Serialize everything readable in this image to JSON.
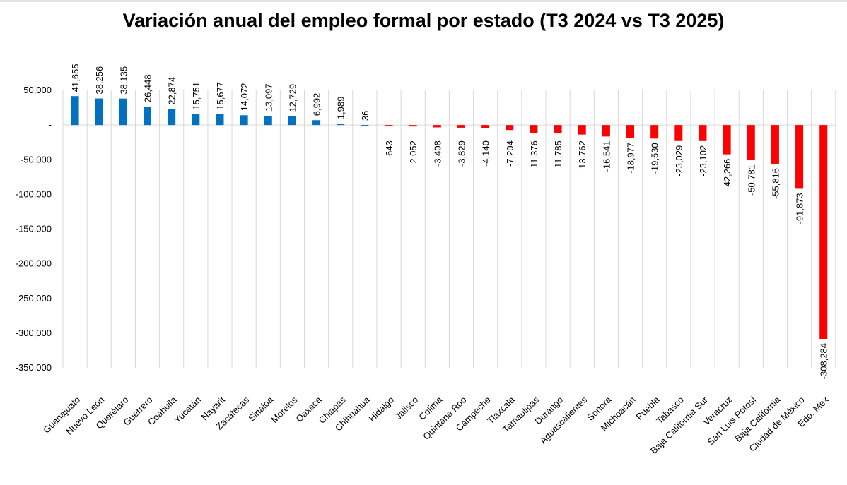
{
  "chart_data": {
    "type": "bar",
    "title": "Variación anual del empleo formal por estado (T3 2024 vs T3 2025)",
    "xlabel": "",
    "ylabel": "",
    "ylim": [
      -350000,
      50000
    ],
    "yticks": [
      50000,
      0,
      -50000,
      -100000,
      -150000,
      -200000,
      -250000,
      -300000,
      -350000
    ],
    "ytick_labels": [
      "50,000",
      "-",
      "-50,000",
      "-100,000",
      "-150,000",
      "-200,000",
      "-250,000",
      "-300,000",
      "-350,000"
    ],
    "grid": "vertical",
    "legend": "none",
    "colors": {
      "positive": "#0070c0",
      "negative": "#ff0000",
      "grid": "#d9d9d9"
    },
    "categories": [
      "Guanajuato",
      "Nuevo León",
      "Querétaro",
      "Guerrero",
      "Coahuila",
      "Yucatán",
      "Nayarit",
      "Zacatecas",
      "Sinaloa",
      "Morelos",
      "Oaxaca",
      "Chiapas",
      "Chihuahua",
      "Hidalgo",
      "Jalisco",
      "Colima",
      "Quintana Roo",
      "Campeche",
      "Tlaxcala",
      "Tamaulipas",
      "Durango",
      "Aguascalientes",
      "Sonora",
      "Michoacán",
      "Puebla",
      "Tabasco",
      "Baja California Sur",
      "Veracruz",
      "San Luis Potosí",
      "Baja California",
      "Ciudad de México",
      "Edo. Mex"
    ],
    "values": [
      41655,
      38256,
      38135,
      26448,
      22874,
      15751,
      15677,
      14072,
      13097,
      12729,
      6992,
      1989,
      36,
      -643,
      -2052,
      -3408,
      -3829,
      -4140,
      -7204,
      -11376,
      -11785,
      -13762,
      -16541,
      -18977,
      -19530,
      -23029,
      -23102,
      -42266,
      -50781,
      -55816,
      -91873,
      -308284
    ],
    "data_labels": [
      "41,655",
      "38,256",
      "38,135",
      "26,448",
      "22,874",
      "15,751",
      "15,677",
      "14,072",
      "13,097",
      "12,729",
      "6,992",
      "1,989",
      "36",
      "-643",
      "-2,052",
      "-3,408",
      "-3,829",
      "-4,140",
      "-7,204",
      "-11,376",
      "-11,785",
      "-13,762",
      "-16,541",
      "-18,977",
      "-19,530",
      "-23,029",
      "-23,102",
      "-42,266",
      "-50,781",
      "-55,816",
      "-91,873",
      "-308,284"
    ]
  }
}
